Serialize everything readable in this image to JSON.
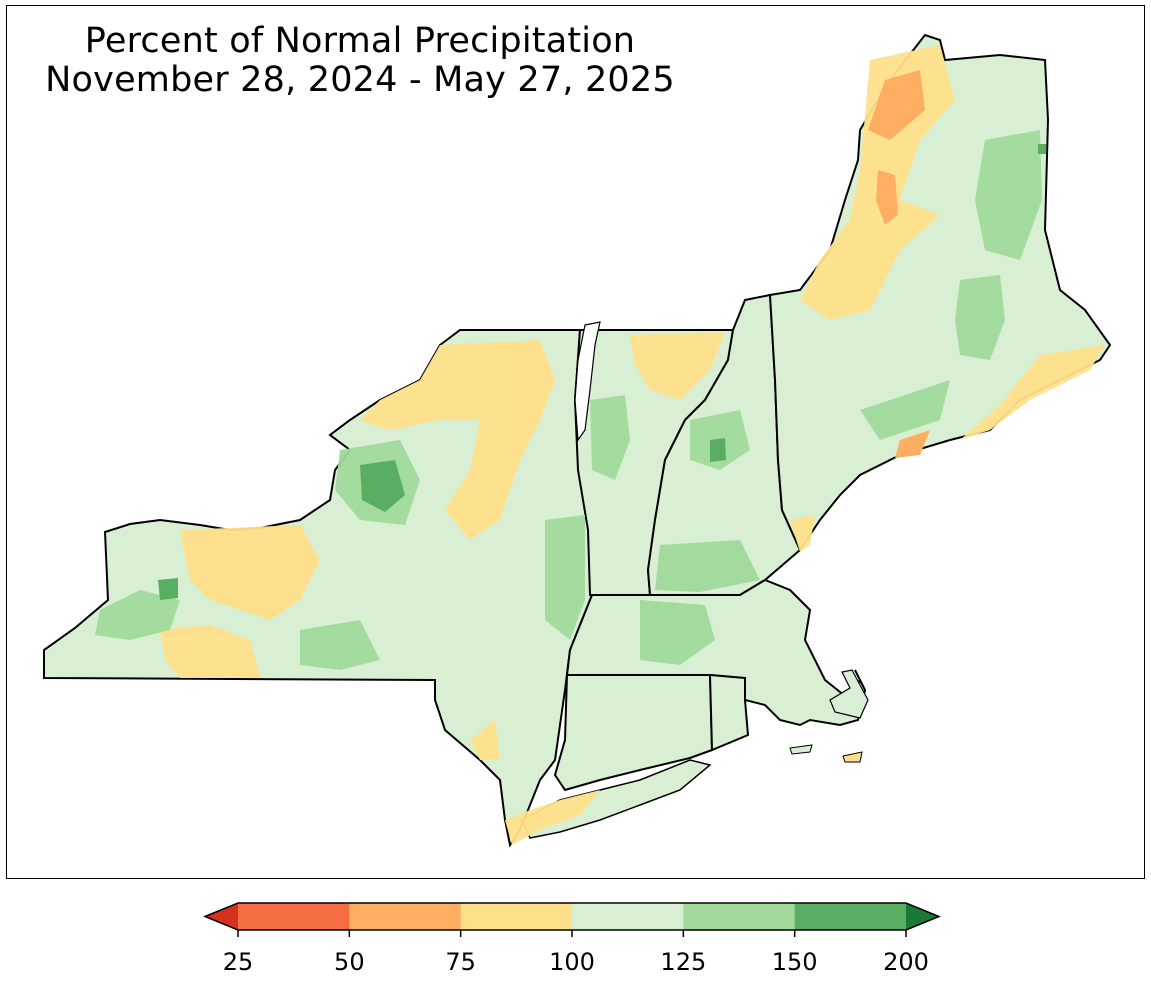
{
  "title": {
    "line1": "Percent of Normal Precipitation",
    "line2": "November 28, 2024 - May 27, 2025"
  },
  "colorbar": {
    "tick_labels": [
      "25",
      "50",
      "75",
      "100",
      "125",
      "150",
      "200"
    ],
    "colors": [
      "#d7301f",
      "#f46d43",
      "#fdae61",
      "#fee08b",
      "#d9efd3",
      "#a1d99b",
      "#5aae61",
      "#1b7837"
    ]
  },
  "map_colors": {
    "base": "#d9efd3",
    "wet": "#a1d99b",
    "very_wet": "#5aae61",
    "dry": "#fee08b",
    "drier": "#fdae61",
    "driest": "#f46d43",
    "border": "#000000",
    "county": "#bdbdbd"
  }
}
